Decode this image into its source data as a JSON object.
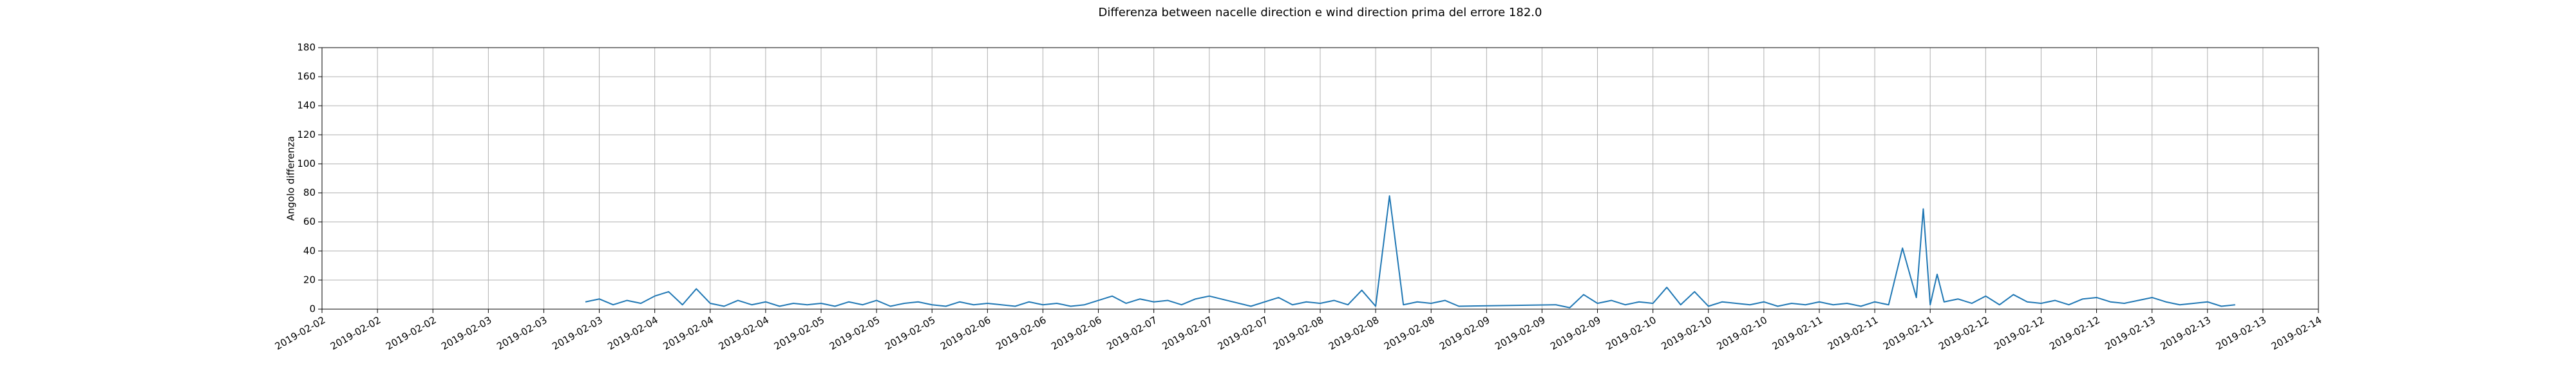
{
  "chart_data": {
    "type": "line",
    "title": "Differenza between nacelle direction e wind direction prima del errore 182.0",
    "y_label": "Angolo differenza",
    "color": "#1f77b4",
    "grid": true,
    "xlim": [
      "2019-02-02 00:00",
      "2019-02-14 00:00"
    ],
    "xticks": [
      {
        "value": "2019-02-02 00:00",
        "label": "2019-02-02"
      },
      {
        "value": "2019-02-02 08:00",
        "label": "2019-02-02"
      },
      {
        "value": "2019-02-02 16:00",
        "label": "2019-02-02"
      },
      {
        "value": "2019-02-03 00:00",
        "label": "2019-02-03"
      },
      {
        "value": "2019-02-03 08:00",
        "label": "2019-02-03"
      },
      {
        "value": "2019-02-03 16:00",
        "label": "2019-02-03"
      },
      {
        "value": "2019-02-04 00:00",
        "label": "2019-02-04"
      },
      {
        "value": "2019-02-04 08:00",
        "label": "2019-02-04"
      },
      {
        "value": "2019-02-04 16:00",
        "label": "2019-02-04"
      },
      {
        "value": "2019-02-05 00:00",
        "label": "2019-02-05"
      },
      {
        "value": "2019-02-05 08:00",
        "label": "2019-02-05"
      },
      {
        "value": "2019-02-05 16:00",
        "label": "2019-02-05"
      },
      {
        "value": "2019-02-06 00:00",
        "label": "2019-02-06"
      },
      {
        "value": "2019-02-06 08:00",
        "label": "2019-02-06"
      },
      {
        "value": "2019-02-06 16:00",
        "label": "2019-02-06"
      },
      {
        "value": "2019-02-07 00:00",
        "label": "2019-02-07"
      },
      {
        "value": "2019-02-07 08:00",
        "label": "2019-02-07"
      },
      {
        "value": "2019-02-07 16:00",
        "label": "2019-02-07"
      },
      {
        "value": "2019-02-08 00:00",
        "label": "2019-02-08"
      },
      {
        "value": "2019-02-08 08:00",
        "label": "2019-02-08"
      },
      {
        "value": "2019-02-08 16:00",
        "label": "2019-02-08"
      },
      {
        "value": "2019-02-09 00:00",
        "label": "2019-02-09"
      },
      {
        "value": "2019-02-09 08:00",
        "label": "2019-02-09"
      },
      {
        "value": "2019-02-09 16:00",
        "label": "2019-02-09"
      },
      {
        "value": "2019-02-10 00:00",
        "label": "2019-02-10"
      },
      {
        "value": "2019-02-10 08:00",
        "label": "2019-02-10"
      },
      {
        "value": "2019-02-10 16:00",
        "label": "2019-02-10"
      },
      {
        "value": "2019-02-11 00:00",
        "label": "2019-02-11"
      },
      {
        "value": "2019-02-11 08:00",
        "label": "2019-02-11"
      },
      {
        "value": "2019-02-11 16:00",
        "label": "2019-02-11"
      },
      {
        "value": "2019-02-12 00:00",
        "label": "2019-02-12"
      },
      {
        "value": "2019-02-12 08:00",
        "label": "2019-02-12"
      },
      {
        "value": "2019-02-12 16:00",
        "label": "2019-02-12"
      },
      {
        "value": "2019-02-13 00:00",
        "label": "2019-02-13"
      },
      {
        "value": "2019-02-13 08:00",
        "label": "2019-02-13"
      },
      {
        "value": "2019-02-13 16:00",
        "label": "2019-02-13"
      },
      {
        "value": "2019-02-14 00:00",
        "label": "2019-02-14"
      }
    ],
    "ylim": [
      0,
      180
    ],
    "yticks": [
      0,
      20,
      40,
      60,
      80,
      100,
      120,
      140,
      160,
      180
    ],
    "x": [
      "2019-02-03 14:00",
      "2019-02-03 16:00",
      "2019-02-03 18:00",
      "2019-02-03 20:00",
      "2019-02-03 22:00",
      "2019-02-04 00:00",
      "2019-02-04 02:00",
      "2019-02-04 04:00",
      "2019-02-04 06:00",
      "2019-02-04 08:00",
      "2019-02-04 10:00",
      "2019-02-04 12:00",
      "2019-02-04 14:00",
      "2019-02-04 16:00",
      "2019-02-04 18:00",
      "2019-02-04 20:00",
      "2019-02-04 22:00",
      "2019-02-05 00:00",
      "2019-02-05 02:00",
      "2019-02-05 04:00",
      "2019-02-05 06:00",
      "2019-02-05 08:00",
      "2019-02-05 10:00",
      "2019-02-05 12:00",
      "2019-02-05 14:00",
      "2019-02-05 16:00",
      "2019-02-05 18:00",
      "2019-02-05 20:00",
      "2019-02-05 22:00",
      "2019-02-06 00:00",
      "2019-02-06 02:00",
      "2019-02-06 04:00",
      "2019-02-06 06:00",
      "2019-02-06 08:00",
      "2019-02-06 10:00",
      "2019-02-06 12:00",
      "2019-02-06 14:00",
      "2019-02-06 16:00",
      "2019-02-06 18:00",
      "2019-02-06 20:00",
      "2019-02-06 22:00",
      "2019-02-07 00:00",
      "2019-02-07 02:00",
      "2019-02-07 04:00",
      "2019-02-07 06:00",
      "2019-02-07 08:00",
      "2019-02-07 14:00",
      "2019-02-07 18:00",
      "2019-02-07 20:00",
      "2019-02-07 22:00",
      "2019-02-08 00:00",
      "2019-02-08 02:00",
      "2019-02-08 04:00",
      "2019-02-08 06:00",
      "2019-02-08 08:00",
      "2019-02-08 10:00",
      "2019-02-08 12:00",
      "2019-02-08 14:00",
      "2019-02-08 16:00",
      "2019-02-08 18:00",
      "2019-02-08 20:00",
      "2019-02-09 10:00",
      "2019-02-09 12:00",
      "2019-02-09 14:00",
      "2019-02-09 16:00",
      "2019-02-09 18:00",
      "2019-02-09 20:00",
      "2019-02-09 22:00",
      "2019-02-10 00:00",
      "2019-02-10 02:00",
      "2019-02-10 04:00",
      "2019-02-10 06:00",
      "2019-02-10 08:00",
      "2019-02-10 10:00",
      "2019-02-10 12:00",
      "2019-02-10 14:00",
      "2019-02-10 16:00",
      "2019-02-10 18:00",
      "2019-02-10 20:00",
      "2019-02-10 22:00",
      "2019-02-11 00:00",
      "2019-02-11 02:00",
      "2019-02-11 04:00",
      "2019-02-11 06:00",
      "2019-02-11 08:00",
      "2019-02-11 10:00",
      "2019-02-11 12:00",
      "2019-02-11 14:00",
      "2019-02-11 15:00",
      "2019-02-11 16:00",
      "2019-02-11 17:00",
      "2019-02-11 18:00",
      "2019-02-11 20:00",
      "2019-02-11 22:00",
      "2019-02-12 00:00",
      "2019-02-12 02:00",
      "2019-02-12 04:00",
      "2019-02-12 06:00",
      "2019-02-12 08:00",
      "2019-02-12 10:00",
      "2019-02-12 12:00",
      "2019-02-12 14:00",
      "2019-02-12 16:00",
      "2019-02-12 18:00",
      "2019-02-12 20:00",
      "2019-02-12 22:00",
      "2019-02-13 00:00",
      "2019-02-13 02:00",
      "2019-02-13 04:00",
      "2019-02-13 06:00",
      "2019-02-13 08:00",
      "2019-02-13 10:00",
      "2019-02-13 12:00"
    ],
    "values": [
      5,
      7,
      3,
      6,
      4,
      9,
      12,
      3,
      14,
      4,
      2,
      6,
      3,
      5,
      2,
      4,
      3,
      4,
      2,
      5,
      3,
      6,
      2,
      4,
      5,
      3,
      2,
      5,
      3,
      4,
      3,
      2,
      5,
      3,
      4,
      2,
      3,
      6,
      9,
      4,
      7,
      5,
      6,
      3,
      7,
      9,
      2,
      8,
      3,
      5,
      4,
      6,
      3,
      13,
      2,
      78,
      3,
      5,
      4,
      6,
      2,
      3,
      1,
      10,
      4,
      6,
      3,
      5,
      4,
      15,
      3,
      12,
      2,
      5,
      4,
      3,
      5,
      2,
      4,
      3,
      5,
      3,
      4,
      2,
      5,
      3,
      42,
      8,
      69,
      3,
      24,
      5,
      7,
      4,
      9,
      3,
      10,
      5,
      4,
      6,
      3,
      7,
      8,
      5,
      4,
      6,
      8,
      5,
      3,
      4,
      5,
      2,
      3
    ]
  }
}
